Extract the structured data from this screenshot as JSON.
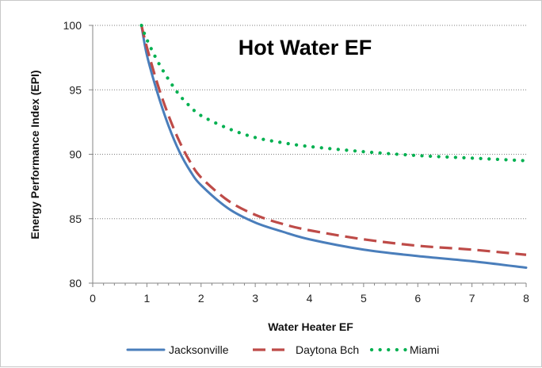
{
  "chart_data": {
    "type": "line",
    "title": "Hot Water EF",
    "xlabel": "Water Heater EF",
    "ylabel": "Energy Performance Index (EPI)",
    "xlim": [
      0,
      8
    ],
    "ylim": [
      80,
      100
    ],
    "x_ticks": [
      "0",
      "1",
      "2",
      "3",
      "4",
      "5",
      "6",
      "7",
      "8"
    ],
    "y_ticks": [
      "80",
      "85",
      "90",
      "95",
      "100"
    ],
    "grid": "horizontal dotted",
    "legend_position": "bottom",
    "series": [
      {
        "name": "Jacksonville",
        "color": "#4a7ebb",
        "style": "solid",
        "x": [
          0.9,
          1.0,
          1.2,
          1.4,
          1.6,
          1.8,
          2.0,
          2.5,
          3.0,
          3.5,
          4.0,
          5.0,
          6.0,
          7.0,
          8.0
        ],
        "y": [
          100,
          97.7,
          94.7,
          92.2,
          90.2,
          88.7,
          87.6,
          85.8,
          84.7,
          84.0,
          83.4,
          82.6,
          82.1,
          81.7,
          81.2
        ]
      },
      {
        "name": "Daytona Bch",
        "color": "#be4b48",
        "style": "dashed",
        "x": [
          0.9,
          1.0,
          1.2,
          1.4,
          1.6,
          1.8,
          2.0,
          2.5,
          3.0,
          3.5,
          4.0,
          5.0,
          6.0,
          7.0,
          8.0
        ],
        "y": [
          100,
          98.3,
          95.4,
          93.0,
          91.0,
          89.4,
          88.2,
          86.4,
          85.3,
          84.6,
          84.1,
          83.4,
          82.9,
          82.6,
          82.2
        ]
      },
      {
        "name": "Miami",
        "color": "#00b050",
        "style": "dotted",
        "x": [
          0.9,
          1.0,
          1.2,
          1.4,
          1.6,
          1.8,
          2.0,
          2.5,
          3.0,
          3.5,
          4.0,
          5.0,
          6.0,
          7.0,
          8.0
        ],
        "y": [
          100,
          98.9,
          97.2,
          95.8,
          94.6,
          93.7,
          93.0,
          92.0,
          91.3,
          90.9,
          90.6,
          90.2,
          89.9,
          89.7,
          89.5
        ]
      }
    ]
  }
}
